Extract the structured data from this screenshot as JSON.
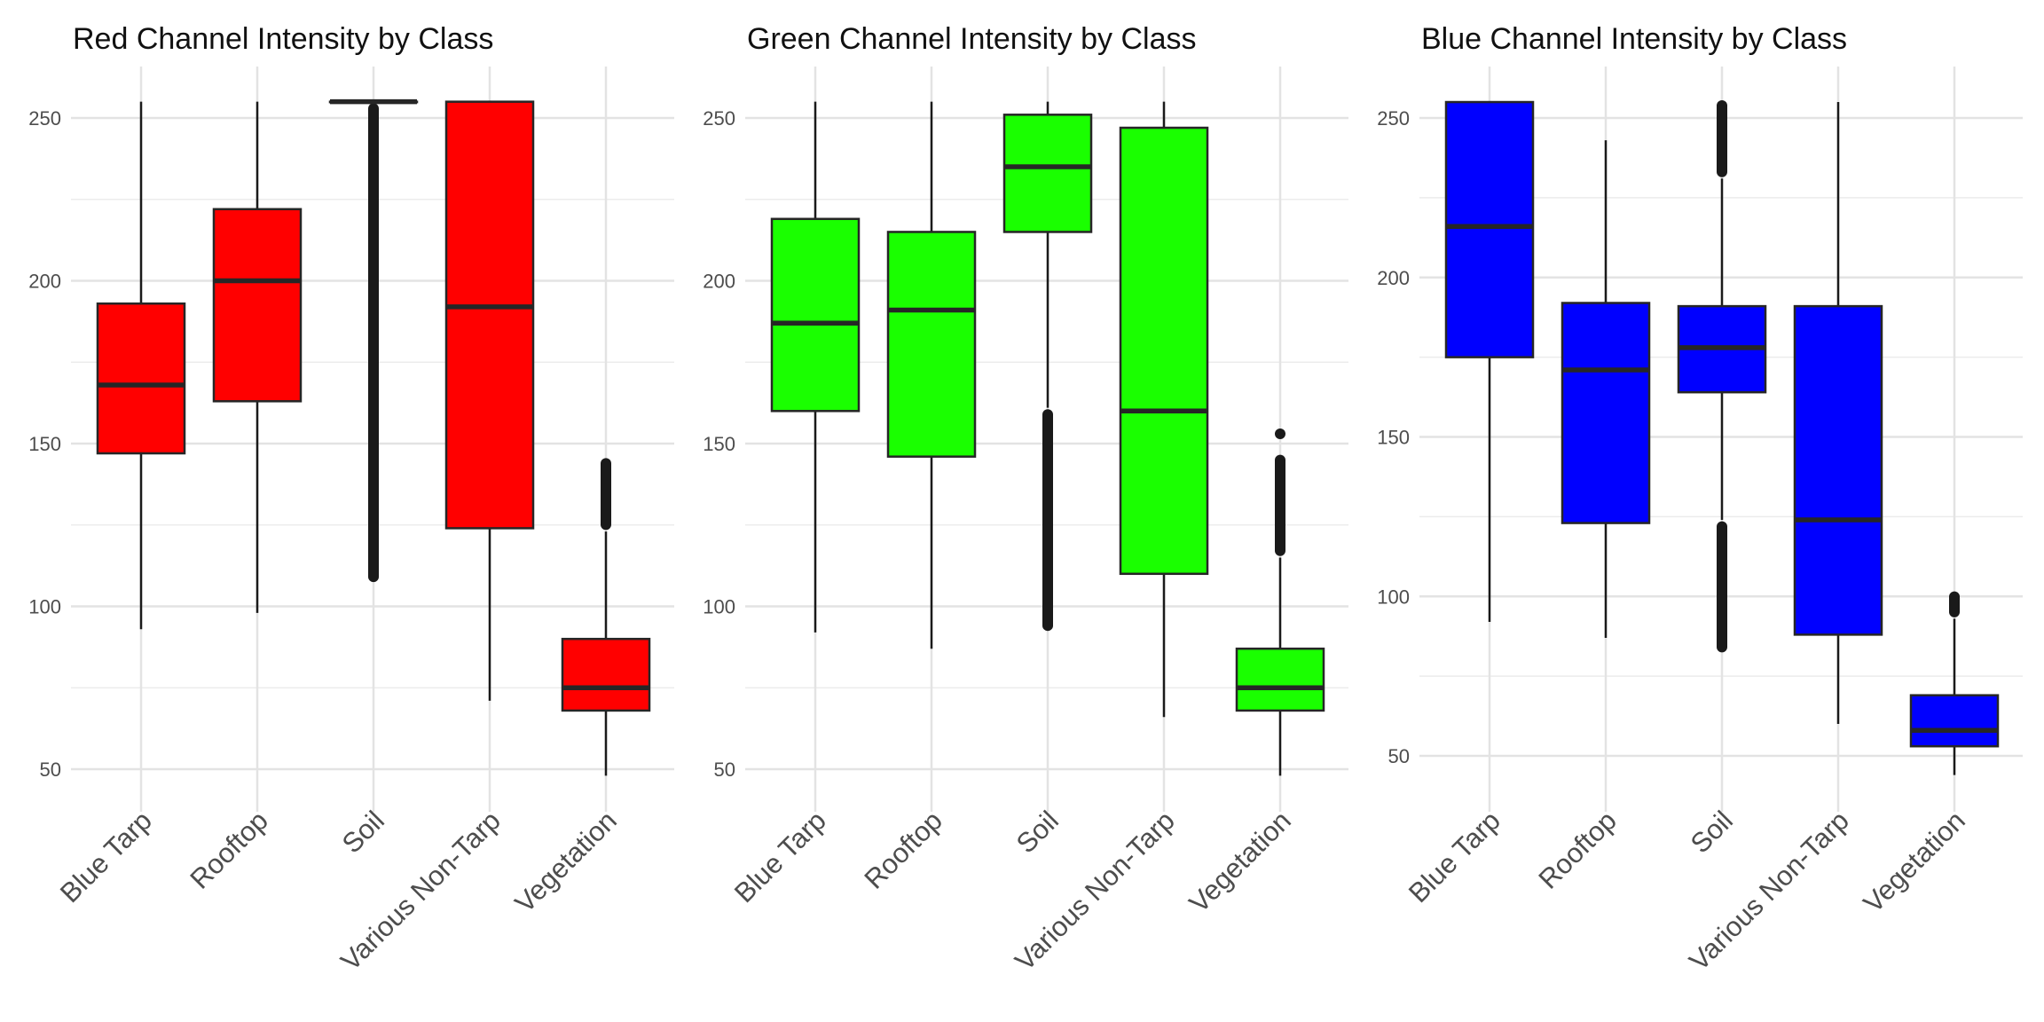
{
  "chart_data": [
    {
      "type": "boxplot",
      "title": "Red Channel Intensity by Class",
      "xlabel": "",
      "ylabel": "",
      "fill_color": "#ff0000",
      "categories": [
        "Blue Tarp",
        "Rooftop",
        "Soil",
        "Various Non-Tarp",
        "Vegetation"
      ],
      "ylim": [
        40,
        260
      ],
      "yticks": [
        50,
        100,
        150,
        200,
        250
      ],
      "grid": true,
      "boxes": [
        {
          "category": "Blue Tarp",
          "whisker_low": 93,
          "q1": 147,
          "median": 168,
          "q3": 193,
          "whisker_high": 255,
          "outliers": []
        },
        {
          "category": "Rooftop",
          "whisker_low": 98,
          "q1": 163,
          "median": 200,
          "q3": 222,
          "whisker_high": 255,
          "outliers": []
        },
        {
          "category": "Soil",
          "whisker_low": 255,
          "q1": 255,
          "median": 255,
          "q3": 255,
          "whisker_high": 255,
          "outliers": [],
          "outlier_bands": [
            [
              108,
              254
            ]
          ]
        },
        {
          "category": "Various Non-Tarp",
          "whisker_low": 71,
          "q1": 124,
          "median": 192,
          "q3": 255,
          "whisker_high": 255,
          "outliers": []
        },
        {
          "category": "Vegetation",
          "whisker_low": 48,
          "q1": 68,
          "median": 75,
          "q3": 90,
          "whisker_high": 123,
          "outliers": [],
          "outlier_bands": [
            [
              124,
              145
            ]
          ]
        }
      ]
    },
    {
      "type": "boxplot",
      "title": "Green Channel Intensity by Class",
      "xlabel": "",
      "ylabel": "",
      "fill_color": "#1aff00",
      "categories": [
        "Blue Tarp",
        "Rooftop",
        "Soil",
        "Various Non-Tarp",
        "Vegetation"
      ],
      "ylim": [
        40,
        260
      ],
      "yticks": [
        50,
        100,
        150,
        200,
        250
      ],
      "grid": true,
      "boxes": [
        {
          "category": "Blue Tarp",
          "whisker_low": 92,
          "q1": 160,
          "median": 187,
          "q3": 219,
          "whisker_high": 255,
          "outliers": []
        },
        {
          "category": "Rooftop",
          "whisker_low": 87,
          "q1": 146,
          "median": 191,
          "q3": 215,
          "whisker_high": 255,
          "outliers": []
        },
        {
          "category": "Soil",
          "whisker_low": 161,
          "q1": 215,
          "median": 235,
          "q3": 251,
          "whisker_high": 255,
          "outliers": [],
          "outlier_bands": [
            [
              93,
              160
            ]
          ]
        },
        {
          "category": "Various Non-Tarp",
          "whisker_low": 66,
          "q1": 110,
          "median": 160,
          "q3": 247,
          "whisker_high": 255,
          "outliers": []
        },
        {
          "category": "Vegetation",
          "whisker_low": 48,
          "q1": 68,
          "median": 75,
          "q3": 87,
          "whisker_high": 115,
          "outliers": [
            153
          ],
          "outlier_bands": [
            [
              116,
              146
            ]
          ]
        }
      ]
    },
    {
      "type": "boxplot",
      "title": "Blue Channel Intensity by Class",
      "xlabel": "",
      "ylabel": "",
      "fill_color": "#0000ff",
      "categories": [
        "Blue Tarp",
        "Rooftop",
        "Soil",
        "Various Non-Tarp",
        "Vegetation"
      ],
      "ylim": [
        35,
        260
      ],
      "yticks": [
        50,
        100,
        150,
        200,
        250
      ],
      "grid": true,
      "boxes": [
        {
          "category": "Blue Tarp",
          "whisker_low": 92,
          "q1": 175,
          "median": 216,
          "q3": 255,
          "whisker_high": 255,
          "outliers": []
        },
        {
          "category": "Rooftop",
          "whisker_low": 87,
          "q1": 123,
          "median": 171,
          "q3": 192,
          "whisker_high": 243,
          "outliers": []
        },
        {
          "category": "Soil",
          "whisker_low": 124,
          "q1": 164,
          "median": 178,
          "q3": 191,
          "whisker_high": 231,
          "outliers": [],
          "outlier_bands": [
            [
              83,
              123
            ],
            [
              232,
              255
            ]
          ]
        },
        {
          "category": "Various Non-Tarp",
          "whisker_low": 60,
          "q1": 88,
          "median": 124,
          "q3": 191,
          "whisker_high": 255,
          "outliers": []
        },
        {
          "category": "Vegetation",
          "whisker_low": 44,
          "q1": 53,
          "median": 58,
          "q3": 69,
          "whisker_high": 93,
          "outliers": [],
          "outlier_bands": [
            [
              94,
              101
            ]
          ]
        }
      ]
    }
  ]
}
